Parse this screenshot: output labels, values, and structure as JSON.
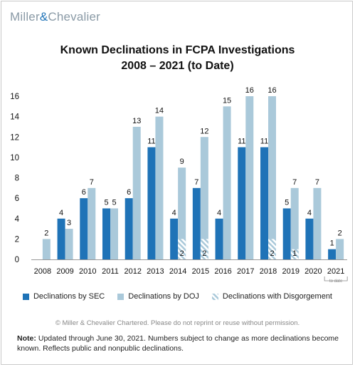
{
  "brand": {
    "left": "Miller",
    "amp": "&",
    "right": "Chevalier"
  },
  "chart_data": {
    "type": "bar",
    "title": "Known Declinations in FCPA Investigations",
    "subtitle": "2008 – 2021 (to Date)",
    "categories": [
      "2008",
      "2009",
      "2010",
      "2011",
      "2012",
      "2013",
      "2014",
      "2015",
      "2016",
      "2017",
      "2018",
      "2019",
      "2020",
      "2021"
    ],
    "category_note": {
      "index": 13,
      "text": "to date"
    },
    "series": [
      {
        "name": "Declinations by SEC",
        "color": "#1f73b7",
        "values": [
          null,
          4,
          6,
          5,
          6,
          11,
          4,
          7,
          4,
          11,
          11,
          5,
          4,
          1
        ]
      },
      {
        "name": "Declinations by DOJ",
        "color": "#aac9da",
        "values": [
          2,
          3,
          7,
          5,
          13,
          14,
          9,
          12,
          15,
          16,
          16,
          7,
          7,
          2
        ]
      },
      {
        "name": "Declinations with Disgorgement",
        "color": "#aac9da",
        "pattern": "hatch",
        "values": [
          null,
          null,
          null,
          null,
          null,
          null,
          2,
          2,
          null,
          null,
          2,
          1,
          null,
          null
        ]
      }
    ],
    "ylim": [
      0,
      16
    ],
    "yticks": [
      0,
      2,
      4,
      6,
      8,
      10,
      12,
      14,
      16
    ],
    "grid": false,
    "legend": "bottom"
  },
  "legend": {
    "sec": "Declinations by SEC",
    "doj": "Declinations by DOJ",
    "disg": "Declinations with Disgorgement"
  },
  "copyright": "© Miller & Chevalier Chartered. Please do not reprint or reuse without permission.",
  "note": {
    "label": "Note:",
    "text": " Updated through June 30, 2021. Numbers subject to change as more declinations become known. Reflects public and nonpublic declinations."
  }
}
